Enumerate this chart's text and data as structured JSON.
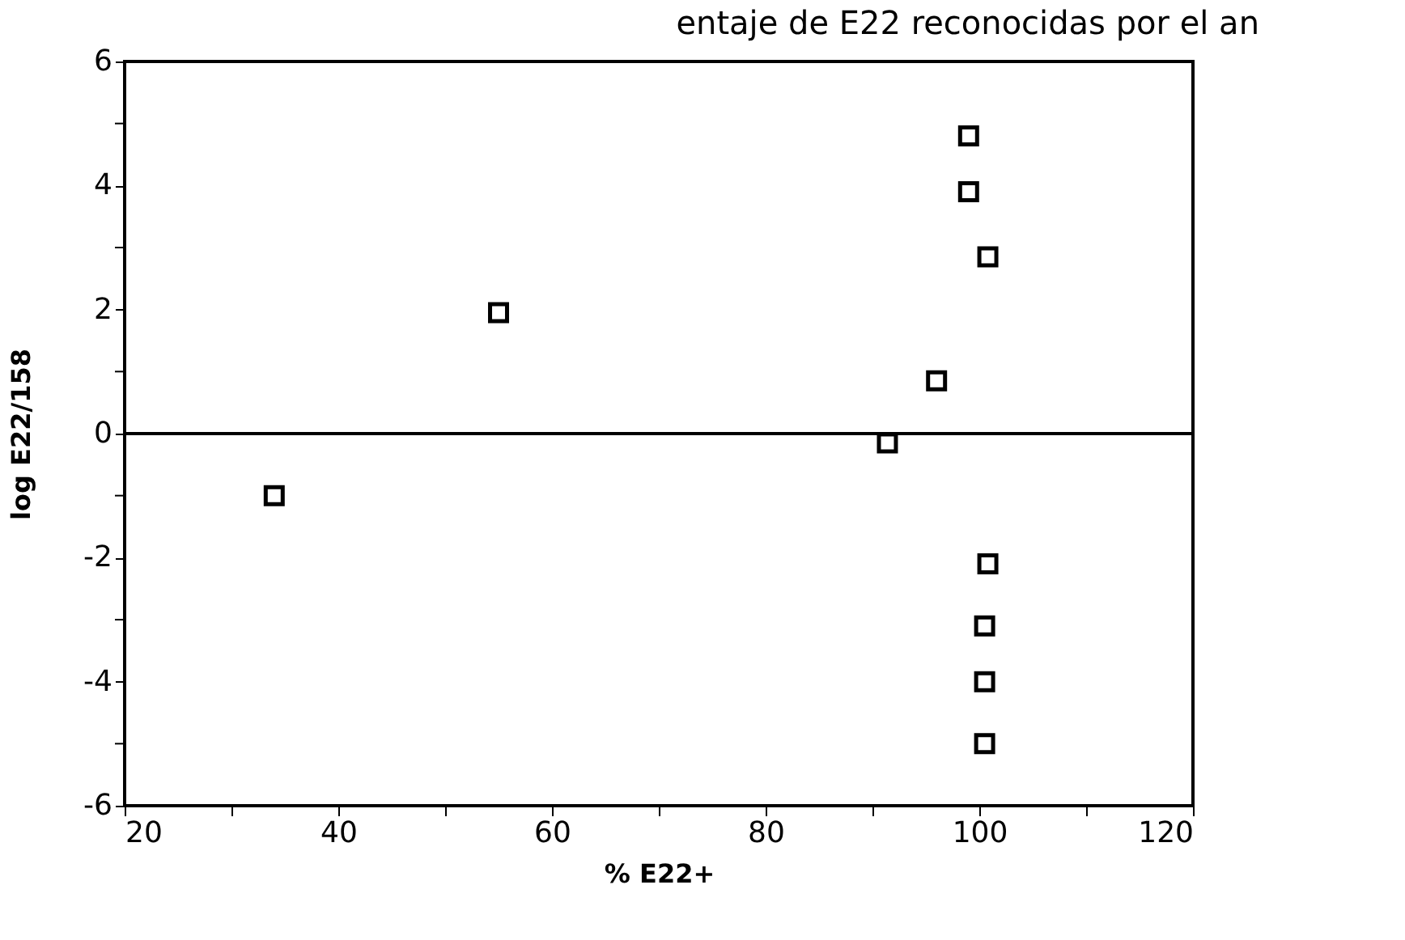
{
  "chart_data": {
    "type": "scatter",
    "title": "entaje de E22 reconocidas por el an",
    "xlabel": "% E22+",
    "ylabel": "log E22/158",
    "x": [
      34,
      55,
      91.4,
      96,
      99,
      99,
      100.8,
      100.8,
      100.5,
      100.5,
      100.5
    ],
    "series": [
      {
        "color": "#000000",
        "values": [
          -1.0,
          1.95,
          -0.15,
          0.85,
          4.8,
          3.9,
          2.85,
          -2.1,
          -3.1,
          -4.0,
          -5.0
        ]
      }
    ],
    "marker": "square",
    "grid": false,
    "xlim": [
      20,
      120
    ],
    "xticks": [
      20,
      {
        "value": 30,
        "label": null
      },
      40,
      {
        "value": 50,
        "label": null
      },
      60,
      {
        "value": 70,
        "label": null
      },
      80,
      {
        "value": 90,
        "label": null
      },
      100,
      {
        "value": 110,
        "label": null
      },
      120
    ],
    "ylim": [
      -6,
      6
    ],
    "yticks": [
      -6,
      {
        "value": -5,
        "label": null
      },
      -4,
      {
        "value": -3,
        "label": null
      },
      -2,
      {
        "value": -1,
        "label": null
      },
      0,
      {
        "value": 1,
        "label": null
      },
      2,
      {
        "value": 3,
        "label": null
      },
      4,
      {
        "value": 5,
        "label": null
      },
      6
    ],
    "ref_lines": [
      {
        "axis": "y",
        "value": 0,
        "color": "#000000",
        "line_style": "solid"
      }
    ]
  }
}
